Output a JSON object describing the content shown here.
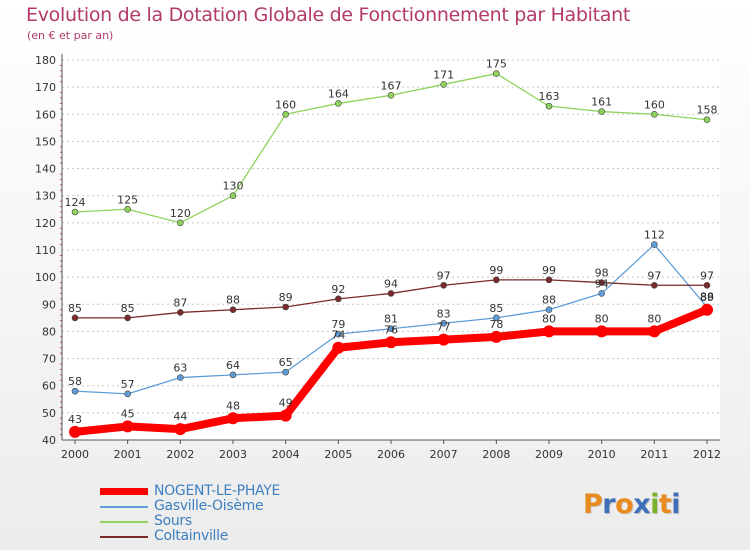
{
  "title": "Evolution de la Dotation Globale de Fonctionnement par Habitant",
  "subtitle": "(en € et par an)",
  "logo": {
    "letters": [
      "P",
      "r",
      "o",
      "x",
      "i",
      "t",
      "i"
    ],
    "colors": [
      "#e98a1f",
      "#3f6fb8",
      "#e98a1f",
      "#3f6fb8",
      "#7cb32d",
      "#e98a1f",
      "#3f6fb8"
    ]
  },
  "legend": {
    "position": "bottom-left"
  },
  "chart_data": {
    "type": "line",
    "title": "Evolution de la Dotation Globale de Fonctionnement par Habitant",
    "subtitle": "(en € et par an)",
    "x": [
      "2000",
      "2001",
      "2002",
      "2003",
      "2004",
      "2005",
      "2006",
      "2007",
      "2008",
      "2009",
      "2010",
      "2011",
      "2012"
    ],
    "ylim": [
      40,
      180
    ],
    "yticks": [
      "40",
      "50",
      "60",
      "70",
      "80",
      "90",
      "100",
      "110",
      "120",
      "130",
      "140",
      "150",
      "160",
      "170",
      "180"
    ],
    "grid": "horizontal dotted",
    "series": [
      {
        "name": "NOGENT-LE-PHAYE",
        "color": "#ff0000",
        "emphasis": true,
        "values": [
          43,
          45,
          44,
          48,
          49,
          74,
          76,
          77,
          78,
          80,
          80,
          80,
          88
        ],
        "labels": [
          "43",
          "45",
          "44",
          "48",
          "49",
          "74",
          "76",
          "77",
          "78",
          "80",
          "80",
          "80",
          "88"
        ]
      },
      {
        "name": "Gasville-Oisème",
        "color": "#5f9dd8",
        "values": [
          58,
          57,
          63,
          64,
          65,
          79,
          81,
          83,
          85,
          88,
          94,
          112,
          89
        ],
        "labels": [
          "58",
          "57",
          "63",
          "64",
          "65",
          "79",
          "81",
          "83",
          "85",
          "88",
          "94",
          "112",
          "89"
        ]
      },
      {
        "name": "Sours",
        "color": "#8fd35c",
        "values": [
          124,
          125,
          120,
          130,
          160,
          164,
          167,
          171,
          175,
          163,
          161,
          160,
          158
        ],
        "labels": [
          "124",
          "125",
          "120",
          "130",
          "160",
          "164",
          "167",
          "171",
          "175",
          "163",
          "161",
          "160",
          "158"
        ]
      },
      {
        "name": "Coltainville",
        "color": "#7a2a2a",
        "values": [
          85,
          85,
          87,
          88,
          89,
          92,
          94,
          97,
          99,
          99,
          98,
          97,
          97
        ],
        "labels": [
          "85",
          "85",
          "87",
          "88",
          "89",
          "92",
          "94",
          "97",
          "99",
          "99",
          "98",
          "97",
          "97"
        ]
      }
    ]
  }
}
